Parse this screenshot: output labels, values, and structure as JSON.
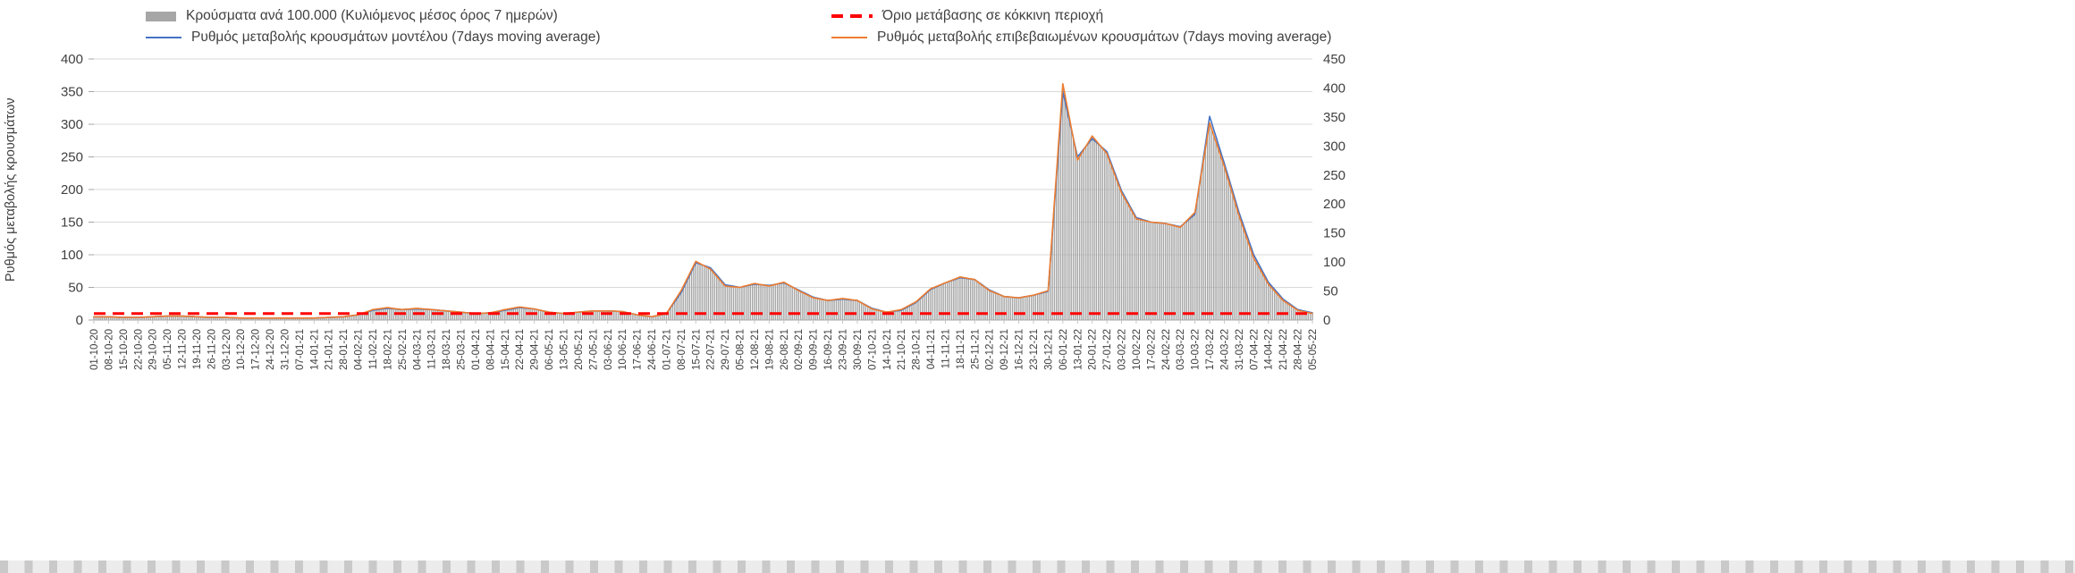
{
  "page": {
    "background": "#ffffff"
  },
  "legend": {
    "items": [
      {
        "label": "Κρούσματα ανά 100.000 (Κυλιόμενος μέσος όρος 7 ημερών)",
        "marker": "bar-marker",
        "color": "#a6a6a6"
      },
      {
        "label": "Όριο μετάβασης σε κόκκινη περιοχή",
        "marker": "dashed-line-marker",
        "color": "#ff0000"
      },
      {
        "label": "Ρυθμός μεταβολής κρουσμάτων μοντέλου (7days moving average)",
        "marker": "line-marker",
        "color": "#4472c4"
      },
      {
        "label": "Ρυθμός μεταβολής επιβεβαιωμένων κρουσμάτων (7days moving average)",
        "marker": "line-marker",
        "color": "#ed7d31"
      }
    ]
  },
  "chart_data": {
    "type": "combo-bar-line",
    "title": "",
    "ylabel": "Ρυθμός μεταβολής κρουσμάτων",
    "xlabel": "",
    "grid": true,
    "legend_position": "top",
    "y_left": {
      "min": 0,
      "max": 400,
      "step": 50
    },
    "y_right": {
      "min": 0,
      "max": 450,
      "step": 50
    },
    "threshold": {
      "label": "Όριο μετάβασης σε κόκκινη περιοχή",
      "value": 10,
      "color": "#ff0000",
      "style": "dashed"
    },
    "categories": [
      "01-10-20",
      "08-10-20",
      "15-10-20",
      "22-10-20",
      "29-10-20",
      "05-11-20",
      "12-11-20",
      "19-11-20",
      "26-11-20",
      "03-12-20",
      "10-12-20",
      "17-12-20",
      "24-12-20",
      "31-12-20",
      "07-01-21",
      "14-01-21",
      "21-01-21",
      "28-01-21",
      "04-02-21",
      "11-02-21",
      "18-02-21",
      "25-02-21",
      "04-03-21",
      "11-03-21",
      "18-03-21",
      "25-03-21",
      "01-04-21",
      "08-04-21",
      "15-04-21",
      "22-04-21",
      "29-04-21",
      "06-05-21",
      "13-05-21",
      "20-05-21",
      "27-05-21",
      "03-06-21",
      "10-06-21",
      "17-06-21",
      "24-06-21",
      "01-07-21",
      "08-07-21",
      "15-07-21",
      "22-07-21",
      "29-07-21",
      "05-08-21",
      "12-08-21",
      "19-08-21",
      "26-08-21",
      "02-09-21",
      "09-09-21",
      "16-09-21",
      "23-09-21",
      "30-09-21",
      "07-10-21",
      "14-10-21",
      "21-10-21",
      "28-10-21",
      "04-11-21",
      "11-11-21",
      "18-11-21",
      "25-11-21",
      "02-12-21",
      "09-12-21",
      "16-12-21",
      "23-12-21",
      "30-12-21",
      "06-01-22",
      "13-01-22",
      "20-01-22",
      "27-01-22",
      "03-02-22",
      "10-02-22",
      "17-02-22",
      "24-02-22",
      "03-03-22",
      "10-03-22",
      "17-03-22",
      "24-03-22",
      "31-03-22",
      "07-04-22",
      "14-04-22",
      "21-04-22",
      "28-04-22",
      "05-05-22"
    ],
    "series": [
      {
        "name": "Κρούσματα ανά 100.000 (Κυλιόμενος μέσος όρος 7 ημερών)",
        "type": "bar",
        "color": "#a6a6a6",
        "axis": "left",
        "values": [
          5,
          5,
          4,
          4,
          5,
          6,
          6,
          5,
          4,
          4,
          3,
          3,
          3,
          3,
          3,
          3,
          4,
          5,
          8,
          16,
          19,
          16,
          18,
          16,
          14,
          12,
          10,
          11,
          16,
          20,
          17,
          12,
          10,
          12,
          14,
          14,
          13,
          8,
          5,
          10,
          45,
          90,
          78,
          52,
          50,
          56,
          52,
          58,
          45,
          34,
          30,
          33,
          30,
          17,
          12,
          16,
          28,
          48,
          57,
          66,
          62,
          45,
          36,
          34,
          38,
          45,
          362,
          245,
          282,
          255,
          195,
          155,
          150,
          148,
          142,
          165,
          302,
          235,
          160,
          95,
          55,
          30,
          15,
          10
        ]
      },
      {
        "name": "Ρυθμός μεταβολής κρουσμάτων μοντέλου (7days moving average)",
        "type": "line",
        "color": "#4472c4",
        "axis": "left",
        "values": [
          5,
          5,
          4,
          4,
          5,
          6,
          6,
          5,
          4,
          4,
          3,
          3,
          3,
          3,
          3,
          3,
          4,
          5,
          8,
          15,
          18,
          16,
          17,
          16,
          14,
          12,
          10,
          11,
          15,
          19,
          17,
          12,
          10,
          12,
          14,
          14,
          13,
          8,
          5,
          10,
          42,
          88,
          80,
          54,
          50,
          55,
          53,
          57,
          46,
          35,
          30,
          32,
          30,
          18,
          12,
          15,
          27,
          47,
          57,
          65,
          62,
          46,
          36,
          34,
          38,
          44,
          350,
          250,
          278,
          258,
          198,
          157,
          150,
          148,
          143,
          162,
          312,
          240,
          165,
          100,
          58,
          32,
          16,
          11
        ]
      },
      {
        "name": "Ρυθμός μεταβολής επιβεβαιωμένων κρουσμάτων (7days moving average)",
        "type": "line",
        "color": "#ed7d31",
        "axis": "left",
        "values": [
          5,
          5,
          4,
          4,
          5,
          6,
          6,
          5,
          4,
          4,
          3,
          3,
          3,
          3,
          3,
          3,
          4,
          5,
          8,
          16,
          19,
          16,
          18,
          16,
          14,
          12,
          10,
          11,
          16,
          20,
          17,
          12,
          10,
          12,
          14,
          14,
          13,
          8,
          5,
          10,
          45,
          90,
          78,
          52,
          50,
          56,
          52,
          58,
          45,
          34,
          30,
          33,
          30,
          17,
          12,
          16,
          28,
          48,
          57,
          66,
          62,
          45,
          36,
          34,
          38,
          45,
          362,
          245,
          282,
          255,
          195,
          155,
          150,
          148,
          142,
          165,
          302,
          235,
          160,
          95,
          55,
          30,
          15,
          10
        ]
      }
    ],
    "colors": {
      "bars": "#a6a6a6",
      "model_line": "#4472c4",
      "confirmed_line": "#ed7d31",
      "threshold": "#ff0000",
      "gridline": "#d9d9d9",
      "axis_text": "#404040"
    }
  }
}
